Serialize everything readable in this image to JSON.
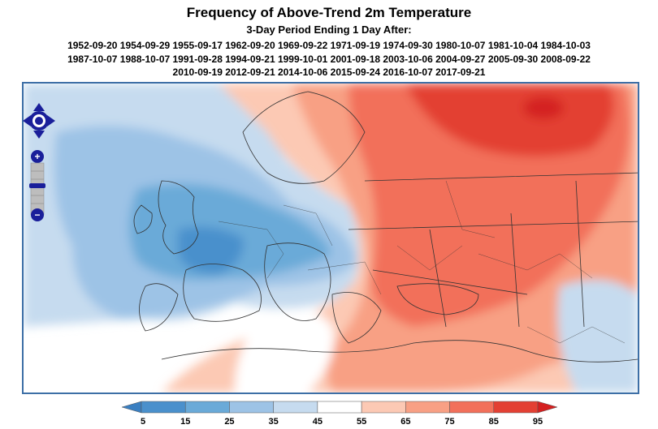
{
  "header": {
    "title": "Frequency of Above-Trend 2m Temperature",
    "subtitle": "3-Day Period Ending 1 Day After:",
    "date_lines": [
      "1952-09-20 1954-09-29 1955-09-17 1962-09-20 1969-09-22 1971-09-19 1974-09-30 1980-10-07 1981-10-04 1984-10-03",
      "1987-10-07 1988-10-07 1991-09-28 1994-09-21 1999-10-01 2001-09-18 2003-10-06 2004-09-27 2005-09-30 2008-09-22",
      "2010-09-19 2012-09-21 2014-10-06 2015-09-24 2016-10-07 2017-09-21"
    ]
  },
  "map_controls": {
    "pan": "pan-arrows-icon",
    "zoom_in": "+",
    "zoom_out": "−"
  },
  "legend": {
    "ticks": [
      "5",
      "15",
      "25",
      "35",
      "45",
      "55",
      "65",
      "75",
      "85",
      "95"
    ],
    "colors": [
      "#4a90cc",
      "#6aaad8",
      "#9dc3e6",
      "#c6dbef",
      "#ffffff",
      "#fcc9b4",
      "#f8a084",
      "#f2705a",
      "#e34033"
    ],
    "under_color": "#3a7fc1",
    "over_color": "#d42020"
  },
  "colors": {
    "map_border": "#3d6fa6",
    "control_blue": "#1a1f9a"
  }
}
